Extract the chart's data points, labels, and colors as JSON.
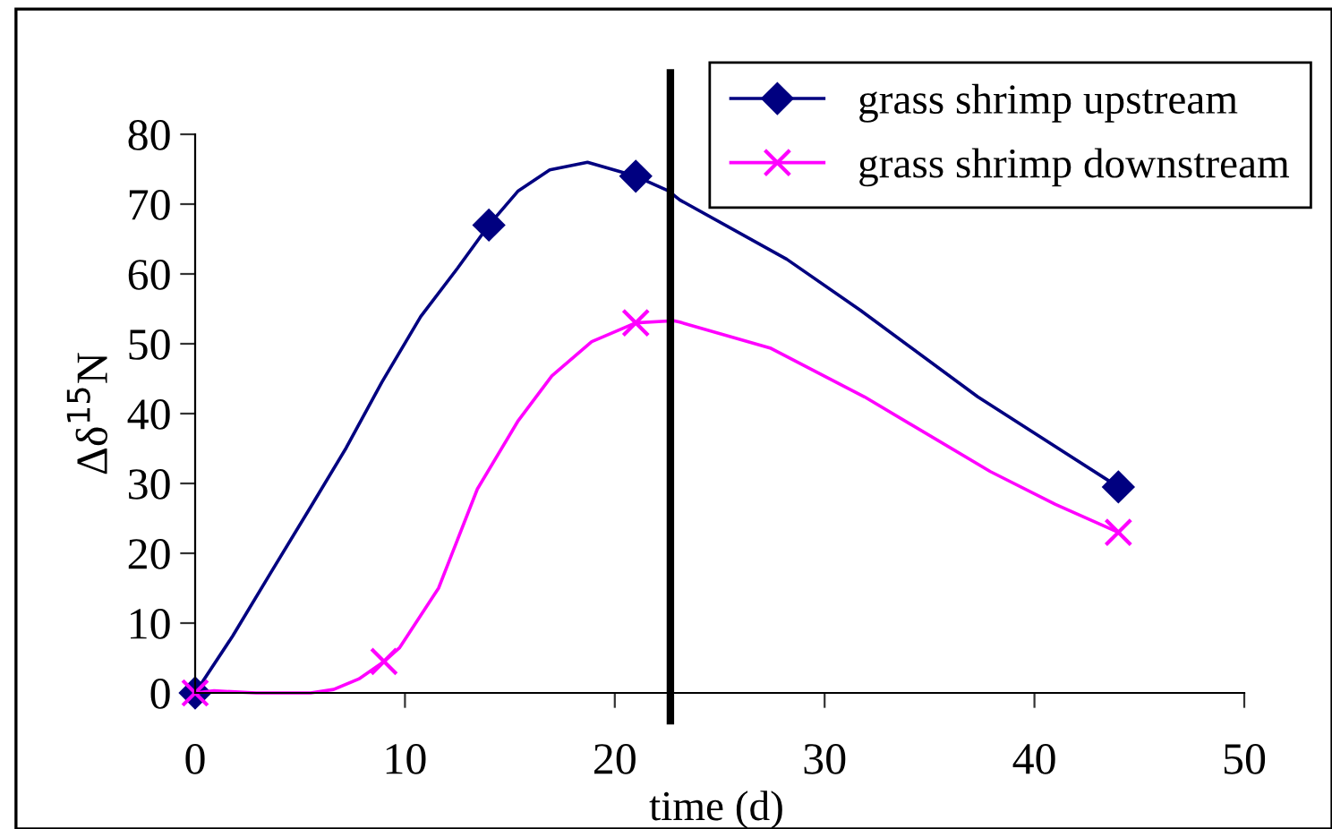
{
  "chart_data": {
    "type": "line",
    "xlabel": "time (d)",
    "ylabel": "Δδ$^{15}$N",
    "series": [
      {
        "name": "grass shrimp upstream",
        "color": "#000080",
        "marker": "none",
        "x": [
          0,
          1.8,
          3.6,
          5.5,
          7.2,
          8.9,
          10.75,
          12.5,
          14,
          15.4,
          16.9,
          18.7,
          21,
          22.55,
          23.1,
          28.2,
          31.7,
          37.3,
          44
        ],
        "values": [
          0,
          8.2,
          17.2,
          26.6,
          35.1,
          44.5,
          53.9,
          60.8,
          67,
          71.9,
          74.9,
          76,
          74,
          71.9,
          70.6,
          62.1,
          54.8,
          42.4,
          29.5
        ]
      },
      {
        "type": "scatter",
        "color": "#000080",
        "marker": "diamond",
        "x": [
          0,
          14,
          21,
          44
        ],
        "values": [
          0,
          67,
          74,
          29.5
        ]
      },
      {
        "name": "grass shrimp downstream",
        "color": "#ff00ff",
        "marker": "none",
        "x": [
          0,
          0.9,
          2.9,
          5.5,
          6.6,
          7.8,
          9,
          9.75,
          11.6,
          13.45,
          15.4,
          17,
          18.9,
          21,
          22.8,
          23.1,
          27.4,
          31.9,
          37.9,
          41,
          44
        ],
        "values": [
          0,
          0.3,
          0,
          0,
          0.5,
          2,
          4.5,
          6.5,
          15,
          29.2,
          39,
          45.4,
          50.3,
          53,
          53.3,
          53.1,
          49.4,
          42.4,
          31.7,
          27,
          23
        ]
      },
      {
        "type": "scatter",
        "color": "#ff00ff",
        "marker": "cross",
        "x": [
          0,
          9,
          21,
          44
        ],
        "values": [
          0,
          4.5,
          53,
          23
        ]
      }
    ],
    "xlim": [
      0,
      50
    ],
    "xticks": [
      0,
      10,
      20,
      30,
      40,
      50
    ],
    "ylim": [
      0,
      80
    ],
    "yticks": [
      0,
      10,
      20,
      30,
      40,
      50,
      60,
      70,
      80
    ],
    "ref_lines": [
      {
        "axis": "x",
        "value": 22.65,
        "color": "#000000"
      }
    ],
    "grid": false,
    "legend": "top right",
    "line_style": "solid"
  }
}
